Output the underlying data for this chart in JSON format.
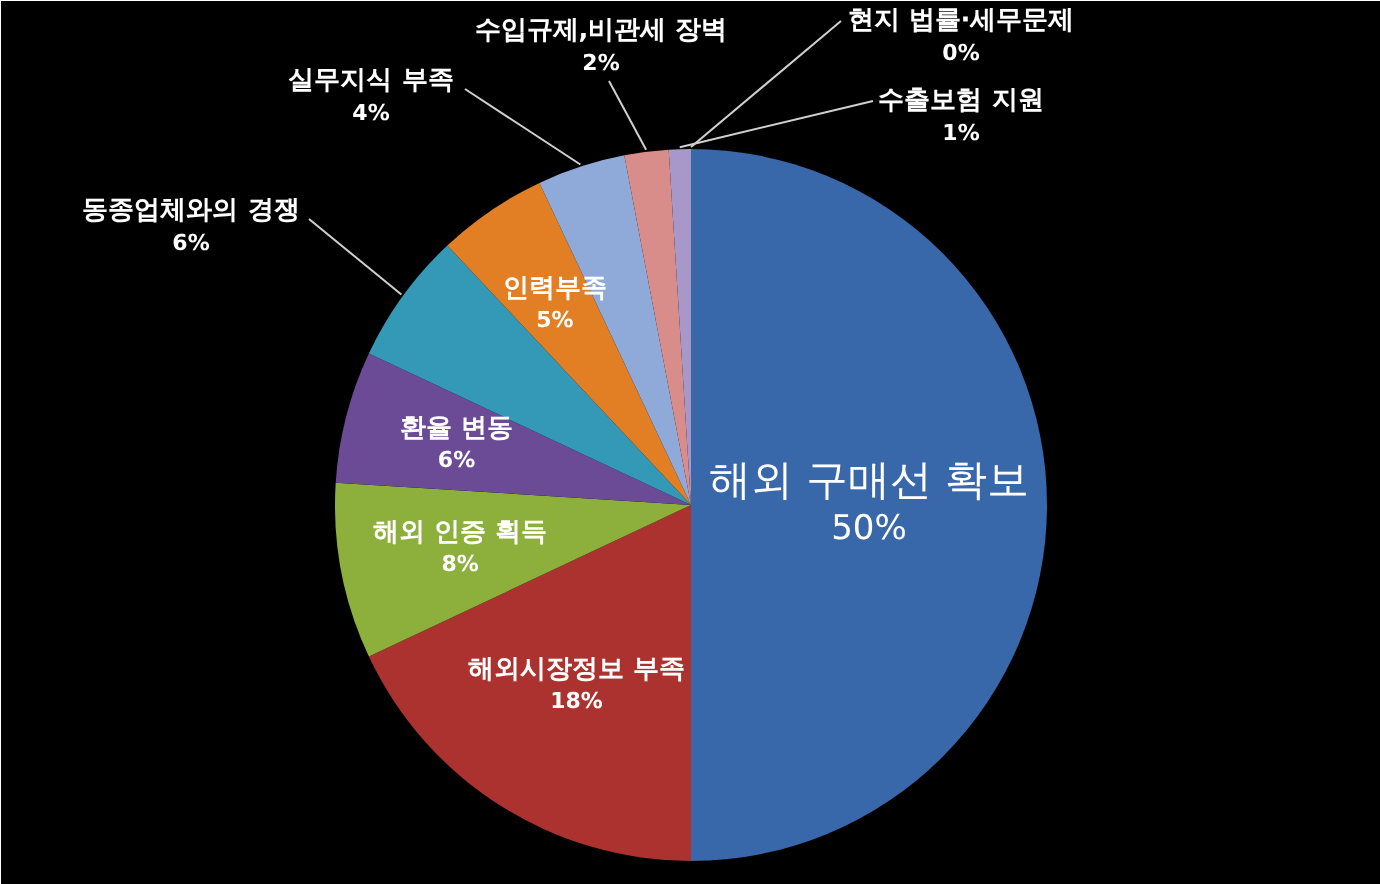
{
  "chart_data": {
    "type": "pie",
    "categories": [
      "해외 구매선 확보",
      "해외시장정보 부족",
      "해외 인증 획득",
      "환율 변동",
      "동종업체와의 경쟁",
      "인력부족",
      "실무지식 부족",
      "수입규제,비관세 장벽",
      "수출보험 지원",
      "현지 법률·세무문제"
    ],
    "values": [
      50,
      18,
      8,
      6,
      6,
      5,
      4,
      2,
      1,
      0
    ],
    "value_labels": [
      "50%",
      "18%",
      "8%",
      "6%",
      "6%",
      "5%",
      "4%",
      "2%",
      "1%",
      "0%"
    ],
    "colors": [
      "#3867aa",
      "#ab322e",
      "#8db03c",
      "#6b4b95",
      "#3499b6",
      "#e27f24",
      "#8fa9d9",
      "#d98d8b",
      "#a897c9",
      "#b9cde5"
    ]
  }
}
